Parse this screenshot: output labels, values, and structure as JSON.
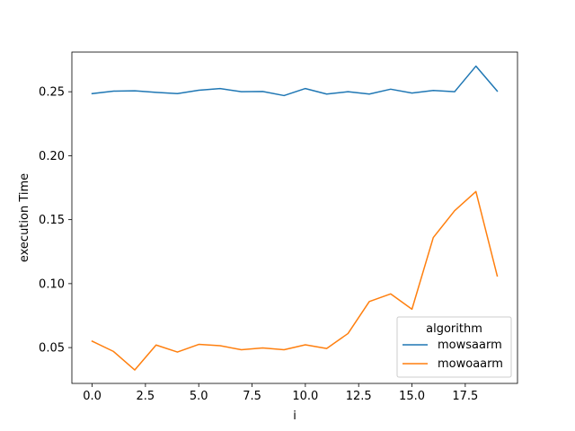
{
  "chart_data": {
    "type": "line",
    "xlabel": "i",
    "ylabel": "execution Time",
    "xlim": [
      -0.95,
      19.95
    ],
    "ylim": [
      0.022,
      0.281
    ],
    "xticks": [
      0.0,
      2.5,
      5.0,
      7.5,
      10.0,
      12.5,
      15.0,
      17.5
    ],
    "xtick_labels": [
      "0.0",
      "2.5",
      "5.0",
      "7.5",
      "10.0",
      "12.5",
      "15.0",
      "17.5"
    ],
    "yticks": [
      0.05,
      0.1,
      0.15,
      0.2,
      0.25
    ],
    "ytick_labels": [
      "0.05",
      "0.10",
      "0.15",
      "0.20",
      "0.25"
    ],
    "grid": false,
    "legend": {
      "title": "algorithm",
      "placement": "lower-right"
    },
    "x": [
      0,
      1,
      2,
      3,
      4,
      5,
      6,
      7,
      8,
      9,
      10,
      11,
      12,
      13,
      14,
      15,
      16,
      17,
      18,
      19
    ],
    "series": [
      {
        "name": "mowsaarm",
        "color": "#1f77b4",
        "values": [
          0.2485,
          0.2505,
          0.2507,
          0.2495,
          0.2485,
          0.2512,
          0.2525,
          0.25,
          0.2502,
          0.247,
          0.2525,
          0.2482,
          0.25,
          0.2482,
          0.252,
          0.249,
          0.251,
          0.25,
          0.27,
          0.2505
        ]
      },
      {
        "name": "mowoaarm",
        "color": "#ff7f0e",
        "values": [
          0.055,
          0.047,
          0.0325,
          0.052,
          0.0465,
          0.0525,
          0.0515,
          0.0483,
          0.0497,
          0.0483,
          0.0522,
          0.0493,
          0.061,
          0.086,
          0.092,
          0.08,
          0.136,
          0.157,
          0.172,
          0.106
        ]
      }
    ]
  }
}
